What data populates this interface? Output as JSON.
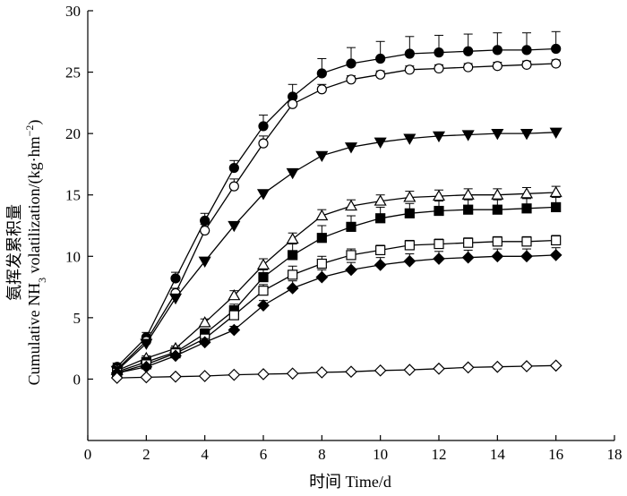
{
  "chart_data": {
    "type": "line",
    "title": "",
    "xlabel": "时间 Time/d",
    "ylabel_cn": "氨挥发累积量",
    "ylabel_en_prefix": "Cumulative NH",
    "ylabel_en_sub": "3",
    "ylabel_en_mid": " volatilization/(kg·hm",
    "ylabel_en_sup": "−2",
    "ylabel_en_suffix": ")",
    "xlim": [
      0,
      18
    ],
    "ylim": [
      -5,
      30
    ],
    "xticks": [
      0,
      2,
      4,
      6,
      8,
      10,
      12,
      14,
      16,
      18
    ],
    "yticks": [
      0,
      5,
      10,
      15,
      20,
      25,
      30
    ],
    "x": [
      1,
      2,
      3,
      4,
      5,
      6,
      7,
      8,
      9,
      10,
      11,
      12,
      13,
      14,
      15,
      16
    ],
    "series": [
      {
        "name": "filled circle",
        "marker": "circle",
        "filled": true,
        "values": [
          1.0,
          3.4,
          8.2,
          12.9,
          17.2,
          20.6,
          23.0,
          24.9,
          25.7,
          26.1,
          26.5,
          26.6,
          26.7,
          26.8,
          26.8,
          26.9
        ],
        "err": [
          0.3,
          0.4,
          0.5,
          0.6,
          0.6,
          0.9,
          1.0,
          1.2,
          1.3,
          1.4,
          1.4,
          1.4,
          1.4,
          1.4,
          1.4,
          1.4
        ]
      },
      {
        "name": "open circle",
        "marker": "circle",
        "filled": false,
        "values": [
          0.8,
          3.1,
          7.0,
          12.1,
          15.7,
          19.2,
          22.4,
          23.6,
          24.4,
          24.8,
          25.2,
          25.3,
          25.4,
          25.5,
          25.6,
          25.7
        ],
        "err": [
          0.2,
          0.3,
          0.4,
          0.5,
          0.6,
          0.6,
          0.5,
          0.4,
          0.3,
          0.3,
          0.3,
          0.3,
          0.3,
          0.3,
          0.3,
          0.3
        ]
      },
      {
        "name": "filled triangle down",
        "marker": "triangle-down",
        "filled": true,
        "values": [
          0.7,
          2.9,
          6.6,
          9.6,
          12.5,
          15.1,
          16.8,
          18.2,
          18.9,
          19.3,
          19.6,
          19.8,
          19.9,
          20.0,
          20.0,
          20.1
        ],
        "err": [
          0.2,
          0.2,
          0.3,
          0.3,
          0.3,
          0.3,
          0.3,
          0.3,
          0.3,
          0.3,
          0.3,
          0.3,
          0.3,
          0.3,
          0.3,
          0.3
        ]
      },
      {
        "name": "open triangle up",
        "marker": "triangle-up",
        "filled": false,
        "values": [
          0.7,
          1.7,
          2.5,
          4.6,
          6.8,
          9.3,
          11.4,
          13.3,
          14.1,
          14.5,
          14.8,
          14.9,
          15.0,
          15.0,
          15.1,
          15.2
        ],
        "err": [
          0.2,
          0.2,
          0.2,
          0.3,
          0.4,
          0.5,
          0.5,
          0.5,
          0.5,
          0.5,
          0.5,
          0.5,
          0.5,
          0.5,
          0.5,
          0.5
        ]
      },
      {
        "name": "filled square",
        "marker": "square",
        "filled": true,
        "values": [
          0.6,
          1.4,
          2.2,
          3.7,
          5.6,
          8.3,
          10.1,
          11.5,
          12.4,
          13.1,
          13.5,
          13.7,
          13.8,
          13.8,
          13.9,
          14.0
        ],
        "err": [
          0.2,
          0.2,
          0.3,
          0.4,
          0.5,
          0.6,
          0.9,
          1.0,
          0.9,
          0.9,
          0.8,
          0.8,
          0.8,
          0.8,
          0.8,
          0.8
        ]
      },
      {
        "name": "open square",
        "marker": "square",
        "filled": false,
        "values": [
          0.5,
          1.2,
          2.1,
          3.3,
          5.2,
          7.2,
          8.5,
          9.4,
          10.1,
          10.5,
          10.9,
          11.0,
          11.1,
          11.2,
          11.2,
          11.3
        ],
        "err": [
          0.2,
          0.2,
          0.2,
          0.3,
          0.4,
          0.5,
          0.7,
          0.6,
          0.5,
          0.4,
          0.4,
          0.4,
          0.4,
          0.4,
          0.4,
          0.4
        ]
      },
      {
        "name": "filled diamond",
        "marker": "diamond",
        "filled": true,
        "values": [
          0.5,
          1.0,
          1.9,
          3.0,
          4.0,
          6.0,
          7.4,
          8.3,
          8.9,
          9.3,
          9.6,
          9.8,
          9.9,
          10.0,
          10.0,
          10.1
        ],
        "err": [
          0.2,
          0.2,
          0.2,
          0.3,
          0.3,
          0.4,
          0.6,
          0.6,
          0.6,
          0.6,
          0.6,
          0.6,
          0.6,
          0.6,
          0.6,
          0.6
        ]
      },
      {
        "name": "open diamond",
        "marker": "diamond",
        "filled": false,
        "values": [
          0.1,
          0.15,
          0.2,
          0.25,
          0.35,
          0.4,
          0.45,
          0.55,
          0.6,
          0.7,
          0.75,
          0.85,
          0.95,
          1.0,
          1.05,
          1.1
        ],
        "err": [
          0,
          0,
          0,
          0,
          0,
          0,
          0,
          0,
          0,
          0,
          0,
          0,
          0,
          0,
          0,
          0
        ]
      }
    ]
  }
}
